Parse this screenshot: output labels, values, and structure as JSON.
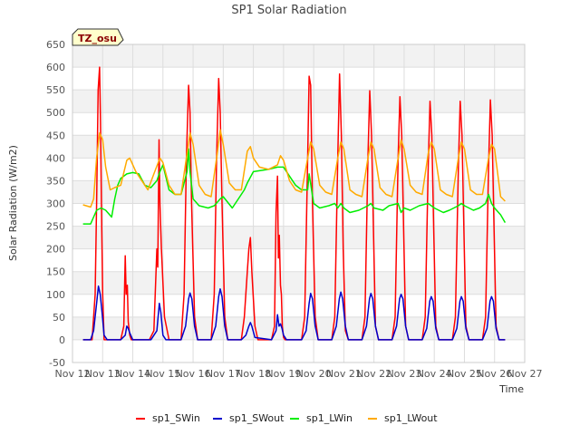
{
  "chart_data": {
    "type": "line",
    "title": "SP1 Solar Radiation",
    "xlabel": "Time",
    "ylabel": "Solar Radiation (W/m2)",
    "timezone_badge": "TZ_osu",
    "x_ticks": [
      "Nov 12",
      "Nov 13",
      "Nov 14",
      "Nov 15",
      "Nov 16",
      "Nov 17",
      "Nov 18",
      "Nov 19",
      "Nov 20",
      "Nov 21",
      "Nov 22",
      "Nov 23",
      "Nov 24",
      "Nov 25",
      "Nov 26",
      "Nov 27"
    ],
    "y_ticks": [
      -50,
      0,
      50,
      100,
      150,
      200,
      250,
      300,
      350,
      400,
      450,
      500,
      550,
      600,
      650
    ],
    "xlim": [
      "Nov 12",
      "Nov 27"
    ],
    "ylim": [
      -50,
      650
    ],
    "grid": true,
    "legend_position": "bottom",
    "series": [
      {
        "name": "sp1_SWin",
        "color": "#ff0000",
        "x": [
          12.35,
          12.55,
          12.65,
          12.75,
          12.8,
          12.85,
          12.9,
          12.93,
          12.96,
          13.0,
          13.05,
          13.1,
          13.25,
          13.6,
          13.7,
          13.75,
          13.78,
          13.82,
          13.85,
          13.9,
          13.95,
          14.1,
          14.55,
          14.7,
          14.8,
          14.83,
          14.87,
          14.9,
          14.95,
          15.05,
          15.2,
          15.6,
          15.7,
          15.78,
          15.85,
          15.9,
          15.95,
          16.05,
          16.15,
          16.6,
          16.7,
          16.78,
          16.85,
          16.9,
          16.96,
          17.05,
          17.15,
          17.6,
          17.7,
          17.8,
          17.85,
          17.9,
          17.95,
          18.05,
          18.15,
          18.6,
          18.7,
          18.75,
          18.8,
          18.83,
          18.86,
          18.9,
          18.93,
          18.96,
          19.0,
          19.05,
          19.15,
          19.6,
          19.7,
          19.8,
          19.85,
          19.9,
          19.96,
          20.05,
          20.15,
          20.6,
          20.7,
          20.8,
          20.86,
          20.92,
          20.98,
          21.05,
          21.15,
          21.6,
          21.7,
          21.8,
          21.86,
          21.92,
          21.98,
          22.05,
          22.15,
          22.6,
          22.7,
          22.8,
          22.86,
          22.92,
          22.98,
          23.05,
          23.15,
          23.6,
          23.7,
          23.8,
          23.86,
          23.92,
          23.98,
          24.05,
          24.15,
          24.6,
          24.7,
          24.8,
          24.86,
          24.92,
          24.98,
          25.05,
          25.15,
          25.6,
          25.7,
          25.8,
          25.86,
          25.92,
          25.98,
          26.05,
          26.15,
          26.35
        ],
        "y": [
          0,
          0,
          0,
          100,
          300,
          550,
          600,
          480,
          300,
          100,
          0,
          0,
          0,
          0,
          30,
          185,
          100,
          120,
          40,
          10,
          0,
          0,
          0,
          20,
          200,
          160,
          440,
          300,
          200,
          50,
          0,
          0,
          100,
          400,
          560,
          500,
          300,
          50,
          0,
          0,
          100,
          400,
          575,
          500,
          300,
          50,
          0,
          0,
          50,
          150,
          200,
          225,
          150,
          30,
          0,
          0,
          30,
          280,
          360,
          180,
          230,
          120,
          100,
          30,
          5,
          0,
          0,
          0,
          50,
          400,
          580,
          560,
          300,
          50,
          0,
          0,
          50,
          400,
          585,
          450,
          200,
          20,
          0,
          0,
          50,
          400,
          548,
          450,
          250,
          30,
          0,
          0,
          50,
          400,
          535,
          450,
          250,
          30,
          0,
          0,
          50,
          380,
          525,
          450,
          250,
          30,
          0,
          0,
          50,
          380,
          525,
          450,
          250,
          30,
          0,
          0,
          50,
          380,
          528,
          450,
          250,
          30,
          0,
          0
        ]
      },
      {
        "name": "sp1_SWout",
        "color": "#0000cc",
        "x": [
          12.35,
          12.6,
          12.7,
          12.8,
          12.86,
          12.92,
          12.98,
          13.05,
          13.15,
          13.6,
          13.75,
          13.8,
          13.85,
          13.9,
          14.0,
          14.6,
          14.8,
          14.88,
          14.93,
          15.0,
          15.1,
          15.6,
          15.75,
          15.85,
          15.9,
          15.96,
          16.05,
          16.15,
          16.6,
          16.75,
          16.85,
          16.9,
          16.96,
          17.05,
          17.15,
          17.6,
          17.75,
          17.85,
          17.9,
          17.95,
          18.05,
          18.6,
          18.75,
          18.8,
          18.85,
          18.9,
          18.95,
          19.0,
          19.1,
          19.6,
          19.75,
          19.85,
          19.9,
          19.96,
          20.05,
          20.15,
          20.6,
          20.75,
          20.85,
          20.9,
          20.96,
          21.05,
          21.15,
          21.6,
          21.75,
          21.85,
          21.9,
          21.96,
          22.05,
          22.15,
          22.6,
          22.75,
          22.85,
          22.9,
          22.96,
          23.05,
          23.15,
          23.6,
          23.75,
          23.85,
          23.9,
          23.96,
          24.05,
          24.15,
          24.6,
          24.75,
          24.85,
          24.9,
          24.96,
          25.05,
          25.15,
          25.6,
          25.75,
          25.85,
          25.9,
          25.96,
          26.05,
          26.15,
          26.35
        ],
        "y": [
          0,
          0,
          20,
          80,
          118,
          100,
          60,
          10,
          0,
          0,
          10,
          30,
          25,
          15,
          0,
          0,
          20,
          80,
          60,
          10,
          0,
          0,
          30,
          90,
          103,
          90,
          30,
          0,
          0,
          30,
          95,
          112,
          95,
          30,
          0,
          0,
          10,
          30,
          38,
          30,
          5,
          0,
          20,
          55,
          30,
          35,
          25,
          10,
          0,
          0,
          20,
          80,
          102,
          90,
          30,
          0,
          0,
          30,
          90,
          105,
          90,
          30,
          0,
          0,
          30,
          90,
          102,
          90,
          30,
          0,
          0,
          30,
          90,
          100,
          90,
          30,
          0,
          0,
          25,
          85,
          95,
          85,
          25,
          0,
          0,
          25,
          85,
          95,
          85,
          25,
          0,
          0,
          25,
          85,
          95,
          85,
          25,
          0,
          0
        ]
      },
      {
        "name": "sp1_LWin",
        "color": "#00ee00",
        "x": [
          12.35,
          12.6,
          12.7,
          12.8,
          12.95,
          13.1,
          13.3,
          13.4,
          13.5,
          13.6,
          13.8,
          14.0,
          14.2,
          14.4,
          14.6,
          14.8,
          14.9,
          15.0,
          15.2,
          15.4,
          15.6,
          15.8,
          15.85,
          15.9,
          16.0,
          16.2,
          16.5,
          16.7,
          16.9,
          17.0,
          17.3,
          17.5,
          17.7,
          17.8,
          18.0,
          18.5,
          18.8,
          19.0,
          19.2,
          19.4,
          19.6,
          19.8,
          19.85,
          20.0,
          20.2,
          20.5,
          20.7,
          20.8,
          20.9,
          21.0,
          21.2,
          21.5,
          21.8,
          21.9,
          22.0,
          22.3,
          22.5,
          22.8,
          22.9,
          23.0,
          23.2,
          23.5,
          23.8,
          23.9,
          24.0,
          24.3,
          24.5,
          24.8,
          24.9,
          25.0,
          25.3,
          25.5,
          25.7,
          25.8,
          25.9,
          26.0,
          26.2,
          26.35
        ],
        "y": [
          255,
          255,
          270,
          285,
          290,
          285,
          270,
          310,
          340,
          355,
          365,
          368,
          365,
          340,
          335,
          350,
          370,
          385,
          330,
          320,
          320,
          370,
          420,
          370,
          310,
          295,
          290,
          295,
          310,
          315,
          290,
          310,
          330,
          345,
          370,
          375,
          380,
          380,
          360,
          340,
          330,
          330,
          365,
          300,
          290,
          295,
          300,
          290,
          300,
          290,
          280,
          285,
          295,
          300,
          290,
          285,
          295,
          300,
          280,
          290,
          285,
          295,
          300,
          295,
          290,
          280,
          285,
          295,
          300,
          295,
          285,
          290,
          300,
          320,
          300,
          290,
          275,
          258
        ]
      },
      {
        "name": "sp1_LWout",
        "color": "#ffaa00",
        "x": [
          12.35,
          12.6,
          12.7,
          12.8,
          12.9,
          13.0,
          13.1,
          13.25,
          13.4,
          13.6,
          13.8,
          13.9,
          14.1,
          14.3,
          14.5,
          14.7,
          14.9,
          15.0,
          15.2,
          15.4,
          15.6,
          15.8,
          15.9,
          16.0,
          16.2,
          16.4,
          16.6,
          16.8,
          16.9,
          17.0,
          17.2,
          17.4,
          17.6,
          17.8,
          17.9,
          18.0,
          18.2,
          18.5,
          18.8,
          18.9,
          19.0,
          19.2,
          19.4,
          19.6,
          19.8,
          19.9,
          20.0,
          20.2,
          20.4,
          20.6,
          20.8,
          20.9,
          21.0,
          21.2,
          21.4,
          21.6,
          21.8,
          21.9,
          22.0,
          22.2,
          22.4,
          22.6,
          22.8,
          22.9,
          23.0,
          23.2,
          23.4,
          23.6,
          23.8,
          23.9,
          24.0,
          24.2,
          24.4,
          24.6,
          24.8,
          24.9,
          25.0,
          25.2,
          25.4,
          25.6,
          25.8,
          25.9,
          26.0,
          26.2,
          26.35
        ],
        "y": [
          297,
          292,
          310,
          400,
          455,
          440,
          380,
          330,
          335,
          340,
          395,
          400,
          370,
          350,
          330,
          365,
          400,
          390,
          340,
          320,
          320,
          410,
          455,
          430,
          340,
          320,
          315,
          410,
          462,
          430,
          345,
          330,
          330,
          415,
          425,
          400,
          380,
          375,
          385,
          405,
          395,
          350,
          330,
          325,
          400,
          435,
          420,
          340,
          325,
          320,
          400,
          435,
          420,
          330,
          320,
          315,
          400,
          435,
          420,
          335,
          320,
          315,
          400,
          440,
          420,
          340,
          325,
          320,
          410,
          435,
          420,
          330,
          320,
          315,
          400,
          435,
          420,
          330,
          320,
          320,
          400,
          430,
          420,
          315,
          305
        ]
      }
    ]
  }
}
